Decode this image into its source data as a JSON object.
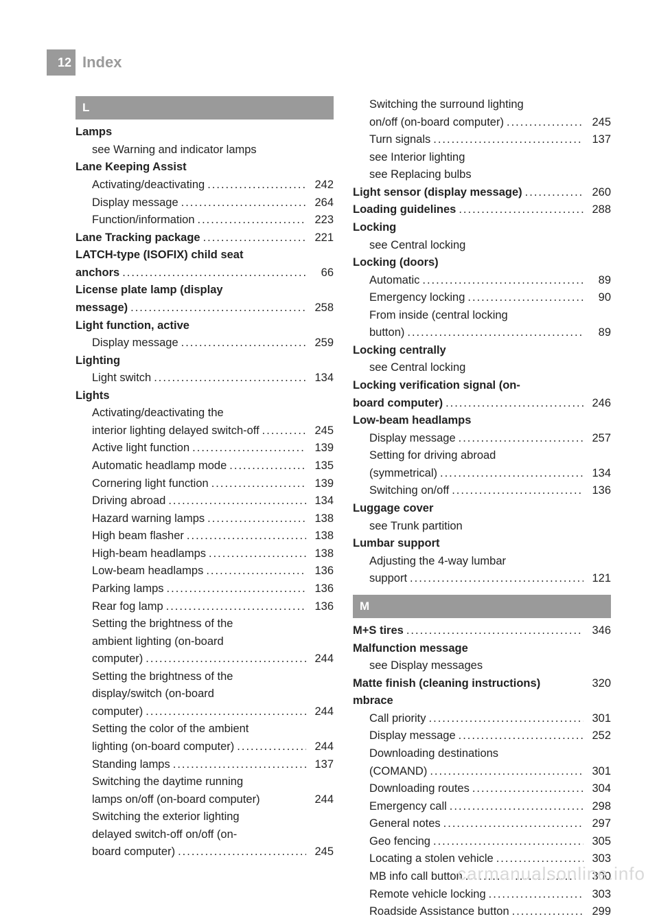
{
  "header": {
    "page_number": "12",
    "title": "Index"
  },
  "watermark": "carmanualsonline.info",
  "columns": [
    [
      {
        "type": "letter",
        "text": "L"
      },
      {
        "type": "row",
        "bold": true,
        "indent": 0,
        "label": "Lamps"
      },
      {
        "type": "row",
        "bold": false,
        "indent": 1,
        "label": "see Warning and indicator lamps"
      },
      {
        "type": "row",
        "bold": true,
        "indent": 0,
        "label": "Lane Keeping Assist"
      },
      {
        "type": "row",
        "bold": false,
        "indent": 1,
        "label": "Activating/deactivating",
        "page": "242"
      },
      {
        "type": "row",
        "bold": false,
        "indent": 1,
        "label": "Display message",
        "page": "264"
      },
      {
        "type": "row",
        "bold": false,
        "indent": 1,
        "label": "Function/information",
        "page": "223"
      },
      {
        "type": "row",
        "bold": true,
        "indent": 0,
        "label": "Lane Tracking package",
        "page": "221"
      },
      {
        "type": "row",
        "bold": true,
        "indent": 0,
        "label": "LATCH-type (ISOFIX) child seat"
      },
      {
        "type": "row",
        "bold": true,
        "indent": 0,
        "label": "anchors",
        "page": "66"
      },
      {
        "type": "row",
        "bold": true,
        "indent": 0,
        "label": "License plate lamp (display"
      },
      {
        "type": "row",
        "bold": true,
        "indent": 0,
        "label": "message)",
        "page": "258"
      },
      {
        "type": "row",
        "bold": true,
        "indent": 0,
        "label": "Light function, active"
      },
      {
        "type": "row",
        "bold": false,
        "indent": 1,
        "label": "Display message",
        "page": "259"
      },
      {
        "type": "row",
        "bold": true,
        "indent": 0,
        "label": "Lighting"
      },
      {
        "type": "row",
        "bold": false,
        "indent": 1,
        "label": "Light switch",
        "page": "134"
      },
      {
        "type": "row",
        "bold": true,
        "indent": 0,
        "label": "Lights"
      },
      {
        "type": "row",
        "bold": false,
        "indent": 1,
        "label": "Activating/deactivating the"
      },
      {
        "type": "row",
        "bold": false,
        "indent": 1,
        "label": "interior lighting delayed switch-off",
        "leader_short": true,
        "page": "245"
      },
      {
        "type": "row",
        "bold": false,
        "indent": 1,
        "label": "Active light function",
        "page": "139"
      },
      {
        "type": "row",
        "bold": false,
        "indent": 1,
        "label": "Automatic headlamp mode",
        "page": "135"
      },
      {
        "type": "row",
        "bold": false,
        "indent": 1,
        "label": "Cornering light function",
        "page": "139"
      },
      {
        "type": "row",
        "bold": false,
        "indent": 1,
        "label": "Driving abroad",
        "page": "134"
      },
      {
        "type": "row",
        "bold": false,
        "indent": 1,
        "label": "Hazard warning lamps",
        "page": "138"
      },
      {
        "type": "row",
        "bold": false,
        "indent": 1,
        "label": "High beam flasher",
        "page": "138"
      },
      {
        "type": "row",
        "bold": false,
        "indent": 1,
        "label": "High-beam headlamps",
        "page": "138"
      },
      {
        "type": "row",
        "bold": false,
        "indent": 1,
        "label": "Low-beam headlamps",
        "page": "136"
      },
      {
        "type": "row",
        "bold": false,
        "indent": 1,
        "label": "Parking lamps",
        "page": "136"
      },
      {
        "type": "row",
        "bold": false,
        "indent": 1,
        "label": "Rear fog lamp",
        "page": "136"
      },
      {
        "type": "row",
        "bold": false,
        "indent": 1,
        "label": "Setting the brightness of the"
      },
      {
        "type": "row",
        "bold": false,
        "indent": 1,
        "label": "ambient lighting (on-board"
      },
      {
        "type": "row",
        "bold": false,
        "indent": 1,
        "label": "computer)",
        "page": "244"
      },
      {
        "type": "row",
        "bold": false,
        "indent": 1,
        "label": "Setting the brightness of the"
      },
      {
        "type": "row",
        "bold": false,
        "indent": 1,
        "label": "display/switch (on-board"
      },
      {
        "type": "row",
        "bold": false,
        "indent": 1,
        "label": "computer)",
        "page": "244"
      },
      {
        "type": "row",
        "bold": false,
        "indent": 1,
        "label": "Setting the color of the ambient"
      },
      {
        "type": "row",
        "bold": false,
        "indent": 1,
        "label": "lighting (on-board computer)",
        "page": "244"
      },
      {
        "type": "row",
        "bold": false,
        "indent": 1,
        "label": "Standing lamps",
        "page": "137"
      },
      {
        "type": "row",
        "bold": false,
        "indent": 1,
        "label": "Switching the daytime running"
      },
      {
        "type": "row",
        "bold": false,
        "indent": 1,
        "label": "lamps on/off (on-board computer)",
        "page": "244",
        "no_leader": true
      },
      {
        "type": "row",
        "bold": false,
        "indent": 1,
        "label": "Switching the exterior lighting"
      },
      {
        "type": "row",
        "bold": false,
        "indent": 1,
        "label": "delayed switch-off on/off (on-"
      },
      {
        "type": "row",
        "bold": false,
        "indent": 1,
        "label": "board computer)",
        "page": "245"
      }
    ],
    [
      {
        "type": "row",
        "bold": false,
        "indent": 1,
        "label": "Switching the surround lighting"
      },
      {
        "type": "row",
        "bold": false,
        "indent": 1,
        "label": "on/off (on-board computer)",
        "page": "245"
      },
      {
        "type": "row",
        "bold": false,
        "indent": 1,
        "label": "Turn signals",
        "page": "137"
      },
      {
        "type": "row",
        "bold": false,
        "indent": 1,
        "label": "see Interior lighting"
      },
      {
        "type": "row",
        "bold": false,
        "indent": 1,
        "label": "see Replacing bulbs"
      },
      {
        "type": "row",
        "bold": true,
        "indent": 0,
        "label": "Light sensor (display message)",
        "page": "260"
      },
      {
        "type": "row",
        "bold": true,
        "indent": 0,
        "label": "Loading guidelines",
        "page": "288"
      },
      {
        "type": "row",
        "bold": true,
        "indent": 0,
        "label": "Locking"
      },
      {
        "type": "row",
        "bold": false,
        "indent": 1,
        "label": "see Central locking"
      },
      {
        "type": "row",
        "bold": true,
        "indent": 0,
        "label": "Locking (doors)"
      },
      {
        "type": "row",
        "bold": false,
        "indent": 1,
        "label": "Automatic",
        "page": "89"
      },
      {
        "type": "row",
        "bold": false,
        "indent": 1,
        "label": "Emergency locking",
        "page": "90"
      },
      {
        "type": "row",
        "bold": false,
        "indent": 1,
        "label": "From inside (central locking"
      },
      {
        "type": "row",
        "bold": false,
        "indent": 1,
        "label": "button)",
        "page": "89"
      },
      {
        "type": "row",
        "bold": true,
        "indent": 0,
        "label": "Locking centrally"
      },
      {
        "type": "row",
        "bold": false,
        "indent": 1,
        "label": "see Central locking"
      },
      {
        "type": "row",
        "bold": true,
        "indent": 0,
        "label": "Locking verification signal (on-"
      },
      {
        "type": "row",
        "bold": true,
        "indent": 0,
        "label": "board computer)",
        "page": "246"
      },
      {
        "type": "row",
        "bold": true,
        "indent": 0,
        "label": "Low-beam headlamps"
      },
      {
        "type": "row",
        "bold": false,
        "indent": 1,
        "label": "Display message",
        "page": "257"
      },
      {
        "type": "row",
        "bold": false,
        "indent": 1,
        "label": "Setting for driving abroad"
      },
      {
        "type": "row",
        "bold": false,
        "indent": 1,
        "label": "(symmetrical)",
        "page": "134"
      },
      {
        "type": "row",
        "bold": false,
        "indent": 1,
        "label": "Switching on/off",
        "page": "136"
      },
      {
        "type": "row",
        "bold": true,
        "indent": 0,
        "label": "Luggage cover"
      },
      {
        "type": "row",
        "bold": false,
        "indent": 1,
        "label": "see Trunk partition"
      },
      {
        "type": "row",
        "bold": true,
        "indent": 0,
        "label": "Lumbar support"
      },
      {
        "type": "row",
        "bold": false,
        "indent": 1,
        "label": "Adjusting the 4-way lumbar"
      },
      {
        "type": "row",
        "bold": false,
        "indent": 1,
        "label": "support",
        "page": "121"
      },
      {
        "type": "letter",
        "text": "M"
      },
      {
        "type": "row",
        "bold": true,
        "indent": 0,
        "label": "M+S tires",
        "page": "346"
      },
      {
        "type": "row",
        "bold": true,
        "indent": 0,
        "label": "Malfunction message"
      },
      {
        "type": "row",
        "bold": false,
        "indent": 1,
        "label": "see Display messages"
      },
      {
        "type": "row",
        "bold": true,
        "indent": 0,
        "label": "Matte finish (cleaning instructions)",
        "page": "320",
        "no_leader": true
      },
      {
        "type": "row",
        "bold": true,
        "indent": 0,
        "label": "mbrace"
      },
      {
        "type": "row",
        "bold": false,
        "indent": 1,
        "label": "Call priority",
        "page": "301"
      },
      {
        "type": "row",
        "bold": false,
        "indent": 1,
        "label": "Display message",
        "page": "252"
      },
      {
        "type": "row",
        "bold": false,
        "indent": 1,
        "label": "Downloading destinations"
      },
      {
        "type": "row",
        "bold": false,
        "indent": 1,
        "label": "(COMAND)",
        "page": "301"
      },
      {
        "type": "row",
        "bold": false,
        "indent": 1,
        "label": "Downloading routes",
        "page": "304"
      },
      {
        "type": "row",
        "bold": false,
        "indent": 1,
        "label": "Emergency call",
        "page": "298"
      },
      {
        "type": "row",
        "bold": false,
        "indent": 1,
        "label": "General notes",
        "page": "297"
      },
      {
        "type": "row",
        "bold": false,
        "indent": 1,
        "label": "Geo fencing",
        "page": "305"
      },
      {
        "type": "row",
        "bold": false,
        "indent": 1,
        "label": "Locating a stolen vehicle",
        "page": "303"
      },
      {
        "type": "row",
        "bold": false,
        "indent": 1,
        "label": "MB info call button",
        "page": "300"
      },
      {
        "type": "row",
        "bold": false,
        "indent": 1,
        "label": "Remote vehicle locking",
        "page": "303"
      },
      {
        "type": "row",
        "bold": false,
        "indent": 1,
        "label": "Roadside Assistance button",
        "page": "299"
      }
    ]
  ]
}
